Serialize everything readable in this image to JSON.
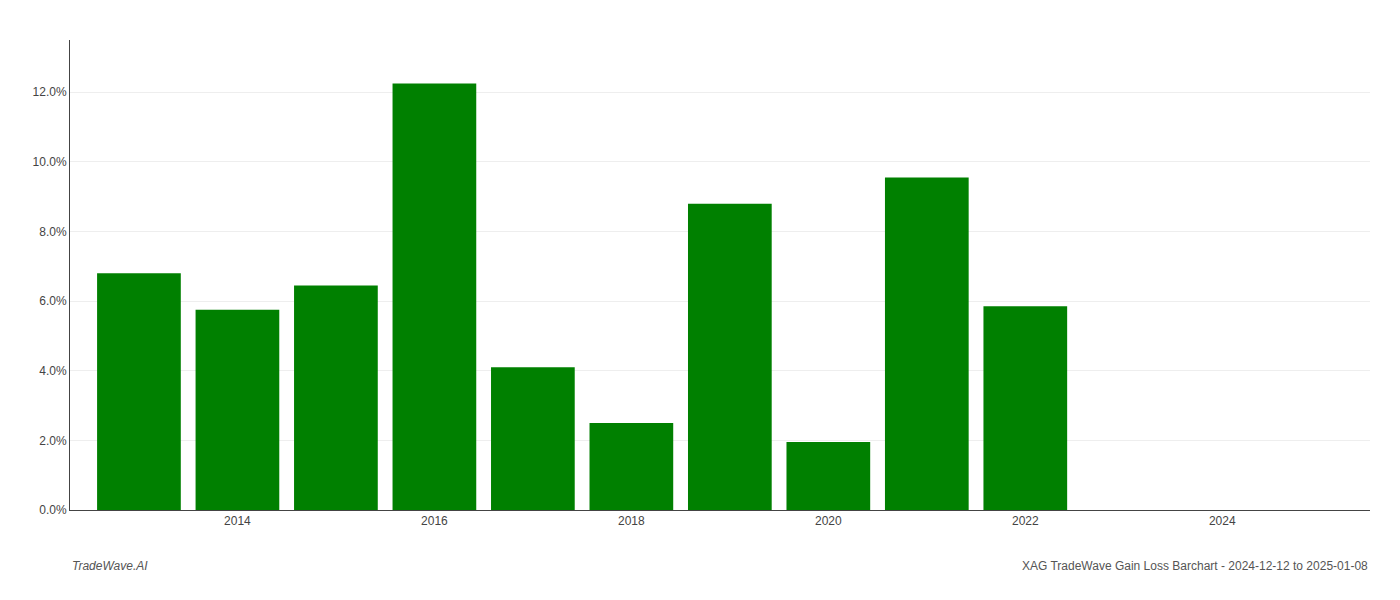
{
  "chart_data": {
    "type": "bar",
    "x": [
      2013,
      2014,
      2015,
      2016,
      2017,
      2018,
      2019,
      2020,
      2021,
      2022
    ],
    "values": [
      0.068,
      0.0575,
      0.0645,
      0.1225,
      0.041,
      0.025,
      0.088,
      0.0195,
      0.0955,
      0.0585
    ],
    "color": "#008000",
    "xlim": [
      2012.3,
      2025.5
    ],
    "xticks": [
      2014,
      2016,
      2018,
      2020,
      2022,
      2024
    ],
    "ylim": [
      0,
      0.135
    ],
    "yticks": [
      {
        "value": 0.0,
        "label": "0.0%"
      },
      {
        "value": 0.02,
        "label": "2.0%"
      },
      {
        "value": 0.04,
        "label": "4.0%"
      },
      {
        "value": 0.06,
        "label": "6.0%"
      },
      {
        "value": 0.08,
        "label": "8.0%"
      },
      {
        "value": 0.1,
        "label": "10.0%"
      },
      {
        "value": 0.12,
        "label": "12.0%"
      }
    ],
    "grid": true,
    "annotations": [
      "TradeWave.AI",
      "XAG TradeWave Gain Loss Barchart - 2024-12-12 to 2025-01-08"
    ]
  }
}
